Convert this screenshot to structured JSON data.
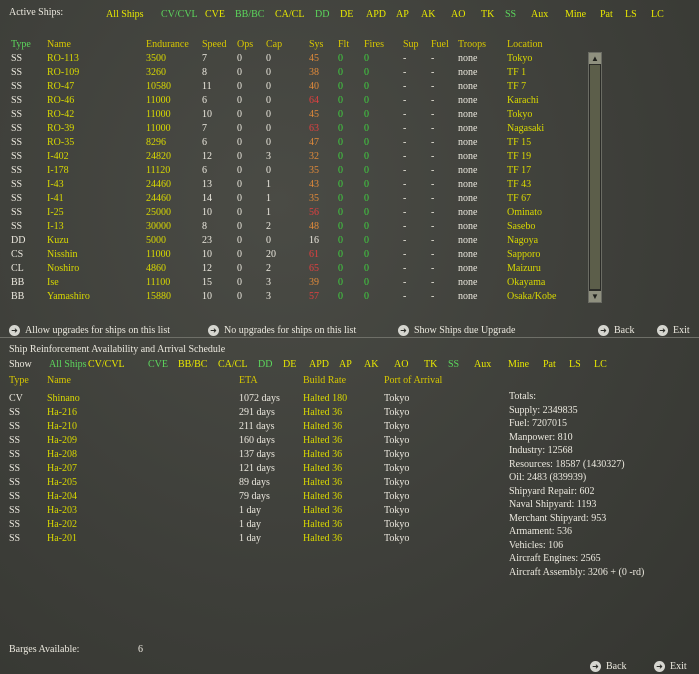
{
  "active": {
    "title": "Active Ships:",
    "filters": [
      "All Ships",
      "CV/CVL",
      "CVE",
      "BB/BC",
      "CA/CL",
      "DD",
      "DE",
      "APD",
      "AP",
      "AK",
      "AO",
      "TK",
      "SS",
      "Aux",
      "Mine",
      "Pat",
      "LS",
      "LC"
    ],
    "columns": [
      "Type",
      "Name",
      "Endurance",
      "Speed",
      "Ops",
      "Cap",
      "Sys",
      "Flt",
      "Fires",
      "Sup",
      "Fuel",
      "Troops",
      "Location"
    ],
    "rows": [
      {
        "type": "SS",
        "name": "RO-113",
        "endurance": "3500",
        "speed": "7",
        "ops": "0",
        "cap": "0",
        "sys": "45",
        "flt": "0",
        "fires": "0",
        "sup": "-",
        "fuel": "-",
        "troops": "none",
        "location": "Tokyo"
      },
      {
        "type": "SS",
        "name": "RO-109",
        "endurance": "3260",
        "speed": "8",
        "ops": "0",
        "cap": "0",
        "sys": "38",
        "flt": "0",
        "fires": "0",
        "sup": "-",
        "fuel": "-",
        "troops": "none",
        "location": "TF 1"
      },
      {
        "type": "SS",
        "name": "RO-47",
        "endurance": "10580",
        "speed": "11",
        "ops": "0",
        "cap": "0",
        "sys": "40",
        "flt": "0",
        "fires": "0",
        "sup": "-",
        "fuel": "-",
        "troops": "none",
        "location": "TF 7"
      },
      {
        "type": "SS",
        "name": "RO-46",
        "endurance": "11000",
        "speed": "6",
        "ops": "0",
        "cap": "0",
        "sys": "64",
        "flt": "0",
        "fires": "0",
        "sup": "-",
        "fuel": "-",
        "troops": "none",
        "location": "Karachi"
      },
      {
        "type": "SS",
        "name": "RO-42",
        "endurance": "11000",
        "speed": "10",
        "ops": "0",
        "cap": "0",
        "sys": "45",
        "flt": "0",
        "fires": "0",
        "sup": "-",
        "fuel": "-",
        "troops": "none",
        "location": "Tokyo"
      },
      {
        "type": "SS",
        "name": "RO-39",
        "endurance": "11000",
        "speed": "7",
        "ops": "0",
        "cap": "0",
        "sys": "63",
        "flt": "0",
        "fires": "0",
        "sup": "-",
        "fuel": "-",
        "troops": "none",
        "location": "Nagasaki"
      },
      {
        "type": "SS",
        "name": "RO-35",
        "endurance": "8296",
        "speed": "6",
        "ops": "0",
        "cap": "0",
        "sys": "47",
        "flt": "0",
        "fires": "0",
        "sup": "-",
        "fuel": "-",
        "troops": "none",
        "location": "TF 15"
      },
      {
        "type": "SS",
        "name": "I-402",
        "endurance": "24820",
        "speed": "12",
        "ops": "0",
        "cap": "3",
        "sys": "32",
        "flt": "0",
        "fires": "0",
        "sup": "-",
        "fuel": "-",
        "troops": "none",
        "location": "TF 19"
      },
      {
        "type": "SS",
        "name": "I-178",
        "endurance": "11120",
        "speed": "6",
        "ops": "0",
        "cap": "0",
        "sys": "35",
        "flt": "0",
        "fires": "0",
        "sup": "-",
        "fuel": "-",
        "troops": "none",
        "location": "TF 17"
      },
      {
        "type": "SS",
        "name": "I-43",
        "endurance": "24460",
        "speed": "13",
        "ops": "0",
        "cap": "1",
        "sys": "43",
        "flt": "0",
        "fires": "0",
        "sup": "-",
        "fuel": "-",
        "troops": "none",
        "location": "TF 43"
      },
      {
        "type": "SS",
        "name": "I-41",
        "endurance": "24460",
        "speed": "14",
        "ops": "0",
        "cap": "1",
        "sys": "35",
        "flt": "0",
        "fires": "0",
        "sup": "-",
        "fuel": "-",
        "troops": "none",
        "location": "TF 67"
      },
      {
        "type": "SS",
        "name": "I-25",
        "endurance": "25000",
        "speed": "10",
        "ops": "0",
        "cap": "1",
        "sys": "56",
        "flt": "0",
        "fires": "0",
        "sup": "-",
        "fuel": "-",
        "troops": "none",
        "location": "Ominato"
      },
      {
        "type": "SS",
        "name": "I-13",
        "endurance": "30000",
        "speed": "8",
        "ops": "0",
        "cap": "2",
        "sys": "48",
        "flt": "0",
        "fires": "0",
        "sup": "-",
        "fuel": "-",
        "troops": "none",
        "location": "Sasebo"
      },
      {
        "type": "DD",
        "name": "Kuzu",
        "endurance": "5000",
        "speed": "23",
        "ops": "0",
        "cap": "0",
        "sys": "16",
        "flt": "0",
        "fires": "0",
        "sup": "-",
        "fuel": "-",
        "troops": "none",
        "location": "Nagoya"
      },
      {
        "type": "CS",
        "name": "Nisshin",
        "endurance": "11000",
        "speed": "10",
        "ops": "0",
        "cap": "20",
        "sys": "61",
        "flt": "0",
        "fires": "0",
        "sup": "-",
        "fuel": "-",
        "troops": "none",
        "location": "Sapporo"
      },
      {
        "type": "CL",
        "name": "Noshiro",
        "endurance": "4860",
        "speed": "12",
        "ops": "0",
        "cap": "2",
        "sys": "65",
        "flt": "0",
        "fires": "0",
        "sup": "-",
        "fuel": "-",
        "troops": "none",
        "location": "Maizuru"
      },
      {
        "type": "BB",
        "name": "Ise",
        "endurance": "11100",
        "speed": "15",
        "ops": "0",
        "cap": "3",
        "sys": "39",
        "flt": "0",
        "fires": "0",
        "sup": "-",
        "fuel": "-",
        "troops": "none",
        "location": "Okayama"
      },
      {
        "type": "BB",
        "name": "Yamashiro",
        "endurance": "15880",
        "speed": "10",
        "ops": "0",
        "cap": "3",
        "sys": "57",
        "flt": "0",
        "fires": "0",
        "sup": "-",
        "fuel": "-",
        "troops": "none",
        "location": "Osaka/Kobe"
      }
    ],
    "actions": {
      "allow": "Allow upgrades for ships on this list",
      "no_upgrades": "No upgrades for ships on this list",
      "show_due": "Show Ships due Upgrade",
      "back": "Back",
      "exit": "Exit"
    }
  },
  "reinforce": {
    "title": "Ship Reinforcement Availability and Arrival Schedule",
    "show_label": "Show",
    "filters": [
      "All Ships",
      "CV/CVL",
      "CVE",
      "BB/BC",
      "CA/CL",
      "DD",
      "DE",
      "APD",
      "AP",
      "AK",
      "AO",
      "TK",
      "SS",
      "Aux",
      "Mine",
      "Pat",
      "LS",
      "LC"
    ],
    "columns": [
      "Type",
      "Name",
      "ETA",
      "Build Rate",
      "Port of Arrival"
    ],
    "rows": [
      {
        "type": "CV",
        "name": "Shinano",
        "eta": "1072 days",
        "rate": "Halted 180",
        "port": "Tokyo"
      },
      {
        "type": "SS",
        "name": "Ha-216",
        "eta": "291 days",
        "rate": "Halted 36",
        "port": "Tokyo"
      },
      {
        "type": "SS",
        "name": "Ha-210",
        "eta": "211 days",
        "rate": "Halted 36",
        "port": "Tokyo"
      },
      {
        "type": "SS",
        "name": "Ha-209",
        "eta": "160 days",
        "rate": "Halted 36",
        "port": "Tokyo"
      },
      {
        "type": "SS",
        "name": "Ha-208",
        "eta": "137 days",
        "rate": "Halted 36",
        "port": "Tokyo"
      },
      {
        "type": "SS",
        "name": "Ha-207",
        "eta": "121 days",
        "rate": "Halted 36",
        "port": "Tokyo"
      },
      {
        "type": "SS",
        "name": "Ha-205",
        "eta": "89 days",
        "rate": "Halted 36",
        "port": "Tokyo"
      },
      {
        "type": "SS",
        "name": "Ha-204",
        "eta": "79 days",
        "rate": "Halted 36",
        "port": "Tokyo"
      },
      {
        "type": "SS",
        "name": "Ha-203",
        "eta": "1 day",
        "rate": "Halted 36",
        "port": "Tokyo"
      },
      {
        "type": "SS",
        "name": "Ha-202",
        "eta": "1 day",
        "rate": "Halted 36",
        "port": "Tokyo"
      },
      {
        "type": "SS",
        "name": "Ha-201",
        "eta": "1 day",
        "rate": "Halted 36",
        "port": "Tokyo"
      }
    ],
    "totals": [
      "Totals:",
      "Supply: 2349835",
      "Fuel: 7207015",
      "Manpower: 810",
      "Industry: 12568",
      "Resources: 18587 (1430327)",
      "Oil: 2483 (839939)",
      "Shipyard Repair: 602",
      "Naval Shipyard: 1193",
      "Merchant Shipyard: 953",
      "Armament: 536",
      "Vehicles: 106",
      "Aircraft Engines: 2565",
      "Aircraft Assembly: 3206 + (0 -rd)"
    ],
    "barges_label": "Barges Available:",
    "barges_value": "6",
    "actions": {
      "back": "Back",
      "exit": "Exit"
    }
  },
  "colors": {
    "yellow": "#d8d800",
    "green": "#3fd23f",
    "red": "#e04040",
    "orange": "#e08a3a",
    "white": "#ece9df"
  }
}
